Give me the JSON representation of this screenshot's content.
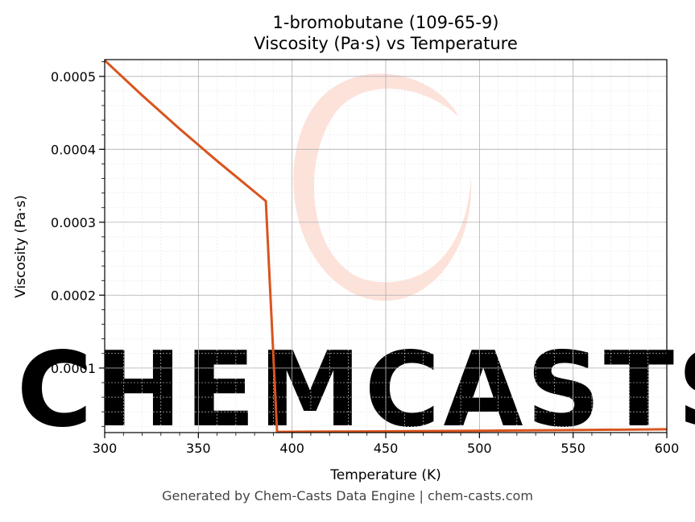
{
  "chart_data": {
    "type": "line",
    "title": "1-bromobutane (109-65-9)",
    "subtitle": "Viscosity (Pa·s) vs Temperature",
    "xlabel": "Temperature (K)",
    "ylabel": "Viscosity (Pa·s)",
    "xlim": [
      300,
      600
    ],
    "ylim": [
      1.15e-05,
      0.000523
    ],
    "xticks": [
      300,
      350,
      400,
      450,
      500,
      550,
      600
    ],
    "xtick_labels": [
      "300",
      "350",
      "400",
      "450",
      "500",
      "550",
      "600"
    ],
    "yticks": [
      0.0001,
      0.0002,
      0.0003,
      0.0004,
      0.0005
    ],
    "ytick_labels": [
      "0.0001",
      "0.0002",
      "0.0003",
      "0.0004",
      "0.0005"
    ],
    "grid": true,
    "line_color": "#d9541e",
    "series": [
      {
        "x": [
          300,
          320,
          340,
          360,
          386,
          392,
          400,
          450,
          500,
          550,
          600
        ],
        "y": [
          0.000522,
          0.000474,
          0.000428,
          0.000384,
          0.000329,
          1.25e-05,
          1.26e-05,
          1.32e-05,
          1.4e-05,
          1.5e-05,
          1.6e-05
        ]
      }
    ]
  },
  "watermark": {
    "text": "CHEMCASTS",
    "color": "#fdd8d0"
  },
  "footer": {
    "text": "Generated by Chem-Casts Data Engine | chem-casts.com"
  }
}
